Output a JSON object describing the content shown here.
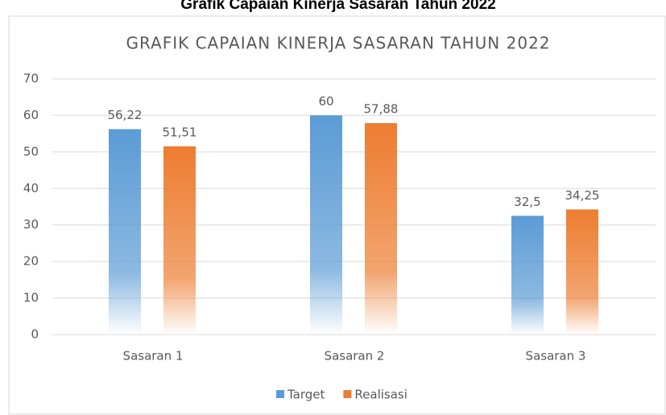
{
  "heading": "Grafik Capaian Kinerja Sasaran Tahun 2022",
  "chart_data": {
    "type": "bar",
    "title": "GRAFIK CAPAIAN KINERJA SASARAN TAHUN 2022",
    "categories": [
      "Sasaran 1",
      "Sasaran 2",
      "Sasaran 3"
    ],
    "series": [
      {
        "name": "Target",
        "color": "#5b9bd5",
        "values": [
          56.22,
          60,
          32.5
        ],
        "value_labels": [
          "56,22",
          "60",
          "32,5"
        ]
      },
      {
        "name": "Realisasi",
        "color": "#ed7d31",
        "values": [
          51.51,
          57.88,
          34.25
        ],
        "value_labels": [
          "51,51",
          "57,88",
          "34,25"
        ]
      }
    ],
    "ylim": [
      0,
      70
    ],
    "yticks": [
      0,
      10,
      20,
      30,
      40,
      50,
      60,
      70
    ],
    "grid": true,
    "legend": "bottom"
  }
}
